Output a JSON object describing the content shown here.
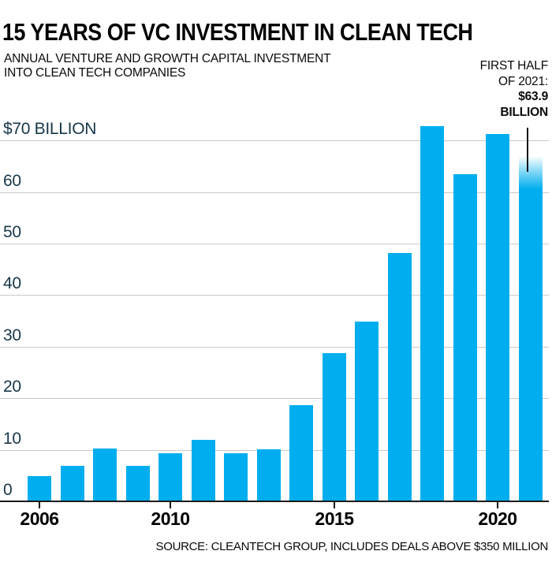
{
  "header": {
    "title": "15 YEARS OF VC INVESTMENT IN CLEAN TECH",
    "subtitle_line1": "ANNUAL VENTURE AND GROWTH CAPITAL INVESTMENT",
    "subtitle_line2": "INTO CLEAN TECH COMPANIES"
  },
  "annotation": {
    "line1": "FIRST HALF",
    "line2": "OF 2021:",
    "line3": "$63.9",
    "line4": "BILLION"
  },
  "chart_data": {
    "type": "bar",
    "title": "15 YEARS OF VC INVESTMENT IN CLEAN TECH",
    "unit": "USD billions",
    "categories": [
      "2006",
      "2007",
      "2008",
      "2009",
      "2010",
      "2011",
      "2012",
      "2013",
      "2014",
      "2015",
      "2016",
      "2017",
      "2018",
      "2019",
      "2020",
      "2021"
    ],
    "values": [
      4.9,
      6.9,
      10.3,
      6.9,
      9.4,
      11.9,
      9.4,
      10.1,
      18.6,
      28.7,
      34.8,
      48.1,
      72.8,
      63.4,
      71.3,
      63.9
    ],
    "partial_year": {
      "year": "2021",
      "value": 63.9
    },
    "y_axis": {
      "tick_labels": [
        "$70 BILLION",
        "60",
        "50",
        "40",
        "30",
        "20",
        "10",
        "0"
      ],
      "tick_values": [
        70,
        60,
        50,
        40,
        30,
        20,
        10,
        0
      ],
      "ylim": [
        0,
        73
      ]
    },
    "x_axis": {
      "tick_labels": [
        "2006",
        "2010",
        "2015",
        "2020"
      ]
    },
    "grid": "horizontal",
    "legend": "none"
  },
  "source": {
    "text": "SOURCE: CLEANTECH GROUP, INCLUDES DEALS ABOVE $350 MILLION"
  },
  "colors": {
    "bar": "#00AEEF",
    "axis_label": "#17384A",
    "gridline": "#C9C9C9",
    "axis_line": "#1A1A1A",
    "text": "#000000",
    "background": "#FFFFFF"
  }
}
